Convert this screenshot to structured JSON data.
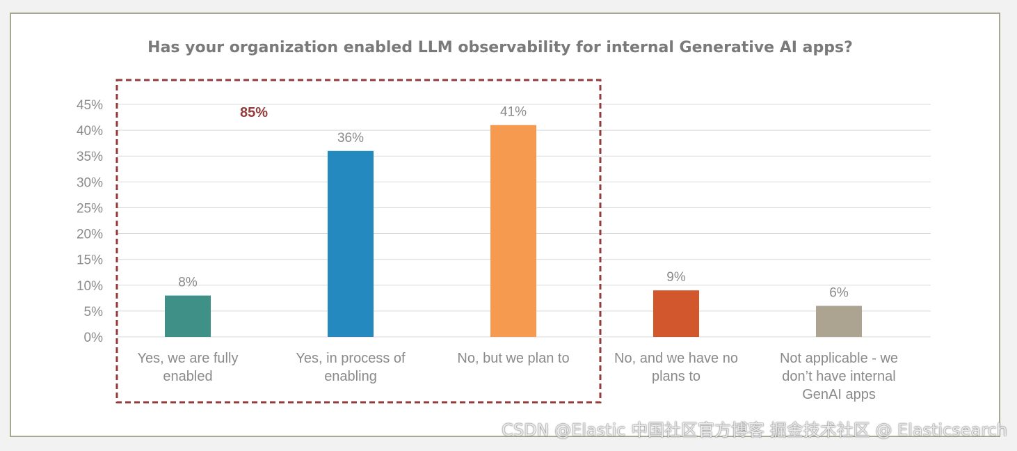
{
  "chart_data": {
    "type": "bar",
    "title": "Has your organization enabled LLM observability for internal Generative AI apps?",
    "xlabel": "",
    "ylabel": "",
    "ylim": [
      0,
      45
    ],
    "yticks": [
      "0%",
      "5%",
      "10%",
      "15%",
      "20%",
      "25%",
      "30%",
      "35%",
      "40%",
      "45%"
    ],
    "grid": true,
    "categories": [
      [
        "Yes, we are fully",
        "enabled"
      ],
      [
        "Yes, in process of",
        "enabling"
      ],
      [
        "No, but we plan to"
      ],
      [
        "No, and we have no",
        "plans to"
      ],
      [
        "Not applicable - we",
        "don’t have internal",
        "GenAI apps"
      ]
    ],
    "values": [
      8,
      36,
      41,
      9,
      6
    ],
    "data_labels": [
      "8%",
      "36%",
      "41%",
      "9%",
      "6%"
    ],
    "colors": [
      "#3f9187",
      "#2389bf",
      "#f59a4e",
      "#d2572c",
      "#aca391"
    ],
    "annotation": {
      "text": "85%",
      "color": "#943a3a",
      "groups_categories": [
        0,
        1,
        2
      ]
    }
  },
  "watermark": "CSDN @Elastic 中国社区官方博客 掘金技术社区 @ Elasticsearch"
}
